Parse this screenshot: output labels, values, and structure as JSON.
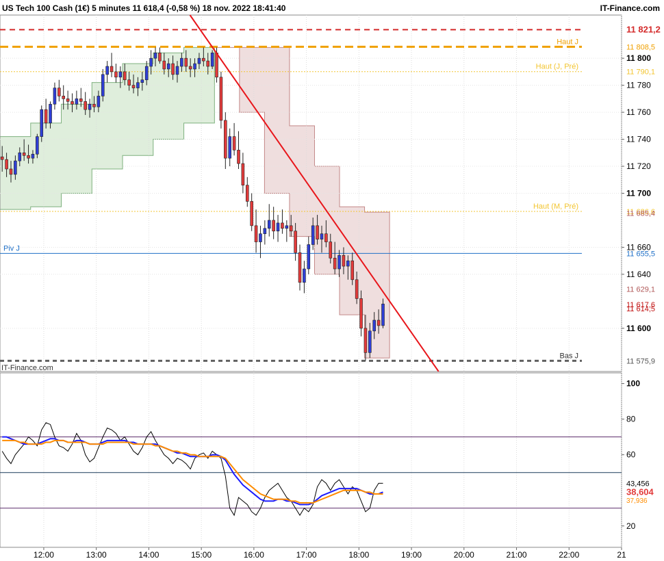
{
  "header": {
    "title": "US Tech 100 Cash (1€) 5 minutes 11 618,4 (-0,58 %) 18 nov. 2022 18:41:40",
    "brand": "IT-Finance.com",
    "watermark": "IT-Finance.com"
  },
  "colors": {
    "bull": "#2f3fd6",
    "bear": "#e23b3b",
    "trendline": "#e8161b",
    "res_high_day": "#f0a000",
    "res_high_prev_day": "#f3c530",
    "res_high_month": "#f3c530",
    "pivot": "#1e6fc7",
    "low_day": "#606060",
    "top_line": "#d42a2a",
    "band_up": "#d8ead4",
    "band_down": "#ecd6d6",
    "osc_line": "#000000",
    "osc_ma1": "#1c1cff",
    "osc_ma2": "#ff8c00",
    "osc_price_label": "#e23b3b"
  },
  "chart_data": {
    "type": "candlestick",
    "timeframe": "5 minutes",
    "instrument": "US Tech 100 Cash (1€)",
    "y_axis": {
      "min": 11568,
      "max": 11832,
      "ticks": [
        {
          "value": 11800,
          "label": "11 800",
          "bold": true
        },
        {
          "value": 11780,
          "label": "11 780",
          "bold": false
        },
        {
          "value": 11760,
          "label": "11 760",
          "bold": false
        },
        {
          "value": 11740,
          "label": "11 740",
          "bold": false
        },
        {
          "value": 11720,
          "label": "11 720",
          "bold": false
        },
        {
          "value": 11700,
          "label": "11 700",
          "bold": true
        },
        {
          "value": 11660,
          "label": "11 660",
          "bold": false
        },
        {
          "value": 11640,
          "label": "11 640",
          "bold": false
        },
        {
          "value": 11600,
          "label": "11 600",
          "bold": true
        }
      ]
    },
    "x_axis": {
      "labels": [
        "12:00",
        "13:00",
        "14:00",
        "15:00",
        "16:00",
        "17:00",
        "18:00",
        "19:00",
        "20:00",
        "21:00",
        "22:00",
        "21"
      ],
      "start": "11:10",
      "end": "23:00"
    },
    "levels": [
      {
        "key": "top",
        "value": 11821.2,
        "label": "",
        "price_label": "11 821,2",
        "style": "dashed-red"
      },
      {
        "key": "haut_j",
        "value": 11808.5,
        "label": "Haut J",
        "price_label": "11 808,5",
        "style": "dashed-orange"
      },
      {
        "key": "haut_j_pre",
        "value": 11790.1,
        "label": "Haut (J, Pré)",
        "price_label": "11 790,1",
        "style": "dotted-yellow"
      },
      {
        "key": "haut_m_pre",
        "value": 11686.6,
        "label": "Haut (M, Pré)",
        "price_label": "11 686,6",
        "style": "dotted-yellow"
      },
      {
        "key": "piv_j",
        "value": 11655.5,
        "label": "Piv J",
        "price_label": "11 655,5",
        "style": "solid-blue"
      },
      {
        "key": "bas_j",
        "value": 11575.9,
        "label": "Bas J",
        "price_label": "11 575,9",
        "style": "dashed-gray"
      }
    ],
    "other_price_labels": [
      {
        "value": 11685.4,
        "label": "11 685,4"
      },
      {
        "value": 11629.1,
        "label": "11 629,1"
      },
      {
        "value": 11617.6,
        "label": "11 617,6"
      },
      {
        "value": 11614.5,
        "label": "11 614,5"
      }
    ],
    "trendline": {
      "from": {
        "time": "14:47",
        "value": 11832
      },
      "to": {
        "time": "19:31",
        "value": 11568
      }
    },
    "candles": [
      {
        "t": "11:10",
        "o": 11727,
        "h": 11735,
        "l": 11716,
        "c": 11725
      },
      {
        "t": "11:15",
        "o": 11725,
        "h": 11730,
        "l": 11712,
        "c": 11718
      },
      {
        "t": "11:20",
        "o": 11718,
        "h": 11724,
        "l": 11708,
        "c": 11714
      },
      {
        "t": "11:25",
        "o": 11714,
        "h": 11728,
        "l": 11710,
        "c": 11724
      },
      {
        "t": "11:30",
        "o": 11724,
        "h": 11734,
        "l": 11720,
        "c": 11730
      },
      {
        "t": "11:35",
        "o": 11730,
        "h": 11740,
        "l": 11724,
        "c": 11728
      },
      {
        "t": "11:40",
        "o": 11728,
        "h": 11736,
        "l": 11722,
        "c": 11726
      },
      {
        "t": "11:45",
        "o": 11726,
        "h": 11732,
        "l": 11722,
        "c": 11729
      },
      {
        "t": "11:50",
        "o": 11729,
        "h": 11744,
        "l": 11726,
        "c": 11742
      },
      {
        "t": "11:55",
        "o": 11742,
        "h": 11765,
        "l": 11738,
        "c": 11762
      },
      {
        "t": "12:00",
        "o": 11762,
        "h": 11770,
        "l": 11748,
        "c": 11752
      },
      {
        "t": "12:05",
        "o": 11752,
        "h": 11768,
        "l": 11748,
        "c": 11766
      },
      {
        "t": "12:10",
        "o": 11766,
        "h": 11782,
        "l": 11762,
        "c": 11778
      },
      {
        "t": "12:15",
        "o": 11778,
        "h": 11784,
        "l": 11768,
        "c": 11772
      },
      {
        "t": "12:20",
        "o": 11772,
        "h": 11780,
        "l": 11762,
        "c": 11770
      },
      {
        "t": "12:25",
        "o": 11770,
        "h": 11776,
        "l": 11762,
        "c": 11768
      },
      {
        "t": "12:30",
        "o": 11768,
        "h": 11774,
        "l": 11760,
        "c": 11766
      },
      {
        "t": "12:35",
        "o": 11766,
        "h": 11776,
        "l": 11762,
        "c": 11770
      },
      {
        "t": "12:40",
        "o": 11770,
        "h": 11778,
        "l": 11764,
        "c": 11768
      },
      {
        "t": "12:45",
        "o": 11768,
        "h": 11775,
        "l": 11758,
        "c": 11762
      },
      {
        "t": "12:50",
        "o": 11762,
        "h": 11770,
        "l": 11756,
        "c": 11766
      },
      {
        "t": "12:55",
        "o": 11766,
        "h": 11772,
        "l": 11760,
        "c": 11764
      },
      {
        "t": "13:00",
        "o": 11764,
        "h": 11776,
        "l": 11760,
        "c": 11772
      },
      {
        "t": "13:05",
        "o": 11772,
        "h": 11792,
        "l": 11768,
        "c": 11788
      },
      {
        "t": "13:10",
        "o": 11788,
        "h": 11798,
        "l": 11782,
        "c": 11794
      },
      {
        "t": "13:15",
        "o": 11794,
        "h": 11804,
        "l": 11786,
        "c": 11790
      },
      {
        "t": "13:20",
        "o": 11790,
        "h": 11796,
        "l": 11782,
        "c": 11786
      },
      {
        "t": "13:25",
        "o": 11786,
        "h": 11794,
        "l": 11778,
        "c": 11790
      },
      {
        "t": "13:30",
        "o": 11790,
        "h": 11796,
        "l": 11780,
        "c": 11784
      },
      {
        "t": "13:35",
        "o": 11784,
        "h": 11790,
        "l": 11776,
        "c": 11780
      },
      {
        "t": "13:40",
        "o": 11780,
        "h": 11788,
        "l": 11774,
        "c": 11778
      },
      {
        "t": "13:45",
        "o": 11778,
        "h": 11786,
        "l": 11772,
        "c": 11782
      },
      {
        "t": "13:50",
        "o": 11782,
        "h": 11790,
        "l": 11776,
        "c": 11784
      },
      {
        "t": "13:55",
        "o": 11784,
        "h": 11798,
        "l": 11780,
        "c": 11794
      },
      {
        "t": "14:00",
        "o": 11794,
        "h": 11806,
        "l": 11788,
        "c": 11800
      },
      {
        "t": "14:05",
        "o": 11800,
        "h": 11808,
        "l": 11794,
        "c": 11804
      },
      {
        "t": "14:10",
        "o": 11804,
        "h": 11808,
        "l": 11796,
        "c": 11798
      },
      {
        "t": "14:15",
        "o": 11798,
        "h": 11804,
        "l": 11788,
        "c": 11792
      },
      {
        "t": "14:20",
        "o": 11792,
        "h": 11800,
        "l": 11786,
        "c": 11796
      },
      {
        "t": "14:25",
        "o": 11796,
        "h": 11802,
        "l": 11784,
        "c": 11788
      },
      {
        "t": "14:30",
        "o": 11788,
        "h": 11798,
        "l": 11782,
        "c": 11794
      },
      {
        "t": "14:35",
        "o": 11794,
        "h": 11804,
        "l": 11790,
        "c": 11800
      },
      {
        "t": "14:40",
        "o": 11800,
        "h": 11806,
        "l": 11790,
        "c": 11794
      },
      {
        "t": "14:45",
        "o": 11794,
        "h": 11800,
        "l": 11786,
        "c": 11792
      },
      {
        "t": "14:50",
        "o": 11792,
        "h": 11800,
        "l": 11786,
        "c": 11796
      },
      {
        "t": "14:55",
        "o": 11796,
        "h": 11804,
        "l": 11792,
        "c": 11800
      },
      {
        "t": "15:00",
        "o": 11800,
        "h": 11808,
        "l": 11794,
        "c": 11798
      },
      {
        "t": "15:05",
        "o": 11798,
        "h": 11804,
        "l": 11788,
        "c": 11794
      },
      {
        "t": "15:10",
        "o": 11794,
        "h": 11806,
        "l": 11792,
        "c": 11804
      },
      {
        "t": "15:15",
        "o": 11804,
        "h": 11808,
        "l": 11782,
        "c": 11786
      },
      {
        "t": "15:20",
        "o": 11786,
        "h": 11790,
        "l": 11748,
        "c": 11754
      },
      {
        "t": "15:25",
        "o": 11754,
        "h": 11760,
        "l": 11718,
        "c": 11726
      },
      {
        "t": "15:30",
        "o": 11726,
        "h": 11748,
        "l": 11720,
        "c": 11742
      },
      {
        "t": "15:35",
        "o": 11742,
        "h": 11752,
        "l": 11728,
        "c": 11732
      },
      {
        "t": "15:40",
        "o": 11732,
        "h": 11746,
        "l": 11718,
        "c": 11722
      },
      {
        "t": "15:45",
        "o": 11722,
        "h": 11730,
        "l": 11700,
        "c": 11706
      },
      {
        "t": "15:50",
        "o": 11706,
        "h": 11712,
        "l": 11690,
        "c": 11694
      },
      {
        "t": "15:55",
        "o": 11694,
        "h": 11700,
        "l": 11672,
        "c": 11676
      },
      {
        "t": "16:00",
        "o": 11676,
        "h": 11688,
        "l": 11656,
        "c": 11664
      },
      {
        "t": "16:05",
        "o": 11664,
        "h": 11676,
        "l": 11652,
        "c": 11670
      },
      {
        "t": "16:10",
        "o": 11670,
        "h": 11680,
        "l": 11662,
        "c": 11674
      },
      {
        "t": "16:15",
        "o": 11674,
        "h": 11692,
        "l": 11668,
        "c": 11680
      },
      {
        "t": "16:20",
        "o": 11680,
        "h": 11690,
        "l": 11666,
        "c": 11672
      },
      {
        "t": "16:25",
        "o": 11672,
        "h": 11684,
        "l": 11664,
        "c": 11678
      },
      {
        "t": "16:30",
        "o": 11678,
        "h": 11688,
        "l": 11670,
        "c": 11674
      },
      {
        "t": "16:35",
        "o": 11674,
        "h": 11680,
        "l": 11664,
        "c": 11676
      },
      {
        "t": "16:40",
        "o": 11676,
        "h": 11684,
        "l": 11668,
        "c": 11672
      },
      {
        "t": "16:45",
        "o": 11672,
        "h": 11678,
        "l": 11650,
        "c": 11656
      },
      {
        "t": "16:50",
        "o": 11656,
        "h": 11662,
        "l": 11628,
        "c": 11634
      },
      {
        "t": "16:55",
        "o": 11634,
        "h": 11650,
        "l": 11626,
        "c": 11644
      },
      {
        "t": "17:00",
        "o": 11644,
        "h": 11668,
        "l": 11640,
        "c": 11662
      },
      {
        "t": "17:05",
        "o": 11662,
        "h": 11682,
        "l": 11658,
        "c": 11676
      },
      {
        "t": "17:10",
        "o": 11676,
        "h": 11684,
        "l": 11662,
        "c": 11666
      },
      {
        "t": "17:15",
        "o": 11666,
        "h": 11676,
        "l": 11656,
        "c": 11670
      },
      {
        "t": "17:20",
        "o": 11670,
        "h": 11680,
        "l": 11660,
        "c": 11664
      },
      {
        "t": "17:25",
        "o": 11664,
        "h": 11670,
        "l": 11648,
        "c": 11652
      },
      {
        "t": "17:30",
        "o": 11652,
        "h": 11664,
        "l": 11640,
        "c": 11644
      },
      {
        "t": "17:35",
        "o": 11644,
        "h": 11658,
        "l": 11638,
        "c": 11654
      },
      {
        "t": "17:40",
        "o": 11654,
        "h": 11660,
        "l": 11640,
        "c": 11646
      },
      {
        "t": "17:45",
        "o": 11646,
        "h": 11654,
        "l": 11636,
        "c": 11650
      },
      {
        "t": "17:50",
        "o": 11650,
        "h": 11656,
        "l": 11632,
        "c": 11636
      },
      {
        "t": "17:55",
        "o": 11636,
        "h": 11642,
        "l": 11618,
        "c": 11622
      },
      {
        "t": "18:00",
        "o": 11622,
        "h": 11628,
        "l": 11594,
        "c": 11600
      },
      {
        "t": "18:05",
        "o": 11600,
        "h": 11610,
        "l": 11576,
        "c": 11582
      },
      {
        "t": "18:10",
        "o": 11582,
        "h": 11604,
        "l": 11578,
        "c": 11598
      },
      {
        "t": "18:15",
        "o": 11598,
        "h": 11612,
        "l": 11592,
        "c": 11606
      },
      {
        "t": "18:20",
        "o": 11606,
        "h": 11614,
        "l": 11596,
        "c": 11602
      },
      {
        "t": "18:25",
        "o": 11602,
        "h": 11622,
        "l": 11600,
        "c": 11618
      }
    ],
    "bands": {
      "up": {
        "from": "11:10",
        "to": "15:15",
        "values": [
          [
            11688,
            11742
          ],
          [
            11690,
            11752
          ],
          [
            11700,
            11766
          ],
          [
            11718,
            11782
          ],
          [
            11728,
            11796
          ],
          [
            11740,
            11804
          ],
          [
            11752,
            11808
          ]
        ]
      },
      "down": {
        "from": "15:15",
        "to": "18:35",
        "values": [
          [
            11808,
            11808
          ],
          [
            11760,
            11808
          ],
          [
            11700,
            11808
          ],
          [
            11668,
            11750
          ],
          [
            11640,
            11720
          ],
          [
            11610,
            11690
          ],
          [
            11578,
            11686
          ]
        ]
      }
    },
    "oscillator": {
      "y_axis": {
        "min": 8,
        "max": 106,
        "ticks": [
          {
            "value": 100,
            "label": "100",
            "bold": true
          },
          {
            "value": 80,
            "label": "80",
            "bold": false
          },
          {
            "value": 60,
            "label": "60",
            "bold": false
          },
          {
            "value": 20,
            "label": "20",
            "bold": false
          }
        ]
      },
      "levels": [
        70,
        50,
        30
      ],
      "last_value_label": "43,456",
      "ma_label": "38,604",
      "ma2_label": "37,936",
      "line": [
        62,
        58,
        55,
        60,
        63,
        66,
        70,
        68,
        65,
        74,
        78,
        77,
        70,
        65,
        64,
        62,
        66,
        72,
        68,
        60,
        56,
        58,
        64,
        70,
        75,
        74,
        72,
        68,
        70,
        66,
        62,
        60,
        64,
        70,
        73,
        68,
        64,
        60,
        58,
        55,
        58,
        57,
        55,
        52,
        58,
        60,
        61,
        58,
        62,
        60,
        58,
        48,
        30,
        26,
        36,
        34,
        32,
        28,
        26,
        30,
        36,
        40,
        42,
        44,
        40,
        36,
        34,
        30,
        26,
        30,
        28,
        32,
        42,
        46,
        44,
        40,
        44,
        46,
        42,
        38,
        42,
        40,
        34,
        28,
        30,
        40,
        44,
        44
      ],
      "ma1": [
        70,
        70,
        69,
        68,
        67,
        66,
        66,
        66,
        66,
        67,
        68,
        69,
        69,
        68,
        68,
        67,
        67,
        68,
        68,
        67,
        66,
        66,
        66,
        67,
        68,
        68,
        68,
        68,
        68,
        67,
        67,
        66,
        66,
        66,
        66,
        66,
        65,
        64,
        63,
        62,
        61,
        61,
        60,
        59,
        59,
        59,
        59,
        59,
        60,
        60,
        59,
        57,
        53,
        49,
        46,
        43,
        41,
        39,
        37,
        35,
        34,
        34,
        34,
        35,
        35,
        34,
        34,
        33,
        32,
        32,
        32,
        33,
        35,
        37,
        38,
        39,
        40,
        41,
        41,
        41,
        41,
        41,
        40,
        39,
        38,
        38,
        38,
        39
      ],
      "ma2": [
        68,
        68,
        68,
        68,
        67,
        67,
        66,
        66,
        66,
        66,
        67,
        67,
        68,
        68,
        68,
        67,
        67,
        67,
        67,
        67,
        66,
        66,
        66,
        66,
        67,
        67,
        67,
        67,
        67,
        67,
        66,
        66,
        66,
        66,
        66,
        65,
        65,
        64,
        63,
        62,
        62,
        61,
        61,
        60,
        60,
        59,
        59,
        59,
        59,
        59,
        59,
        58,
        55,
        52,
        49,
        46,
        44,
        42,
        40,
        38,
        37,
        36,
        35,
        35,
        35,
        35,
        34,
        34,
        33,
        33,
        33,
        33,
        34,
        35,
        36,
        37,
        38,
        39,
        40,
        40,
        40,
        40,
        40,
        39,
        39,
        38,
        38,
        38
      ]
    }
  }
}
